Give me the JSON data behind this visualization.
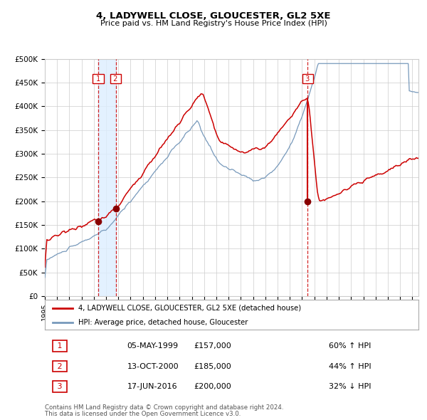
{
  "title": "4, LADYWELL CLOSE, GLOUCESTER, GL2 5XE",
  "subtitle": "Price paid vs. HM Land Registry's House Price Index (HPI)",
  "legend_line1": "4, LADYWELL CLOSE, GLOUCESTER, GL2 5XE (detached house)",
  "legend_line2": "HPI: Average price, detached house, Gloucester",
  "footer1": "Contains HM Land Registry data © Crown copyright and database right 2024.",
  "footer2": "This data is licensed under the Open Government Licence v3.0.",
  "transactions": [
    {
      "num": 1,
      "date": "05-MAY-1999",
      "price": 157000,
      "pct": "60%",
      "dir": "↑",
      "year": 1999.35
    },
    {
      "num": 2,
      "date": "13-OCT-2000",
      "price": 185000,
      "pct": "44%",
      "dir": "↑",
      "year": 2000.79
    },
    {
      "num": 3,
      "date": "17-JUN-2016",
      "price": 200000,
      "pct": "32%",
      "dir": "↓",
      "year": 2016.46
    }
  ],
  "red_line_color": "#cc0000",
  "blue_line_color": "#7799bb",
  "dot_color": "#880000",
  "vline_color": "#cc0000",
  "shade_color": "#ddeeff",
  "grid_color": "#cccccc",
  "ylim": [
    0,
    500000
  ],
  "xlim_start": 1995.0,
  "xlim_end": 2025.5,
  "background_color": "#ffffff"
}
